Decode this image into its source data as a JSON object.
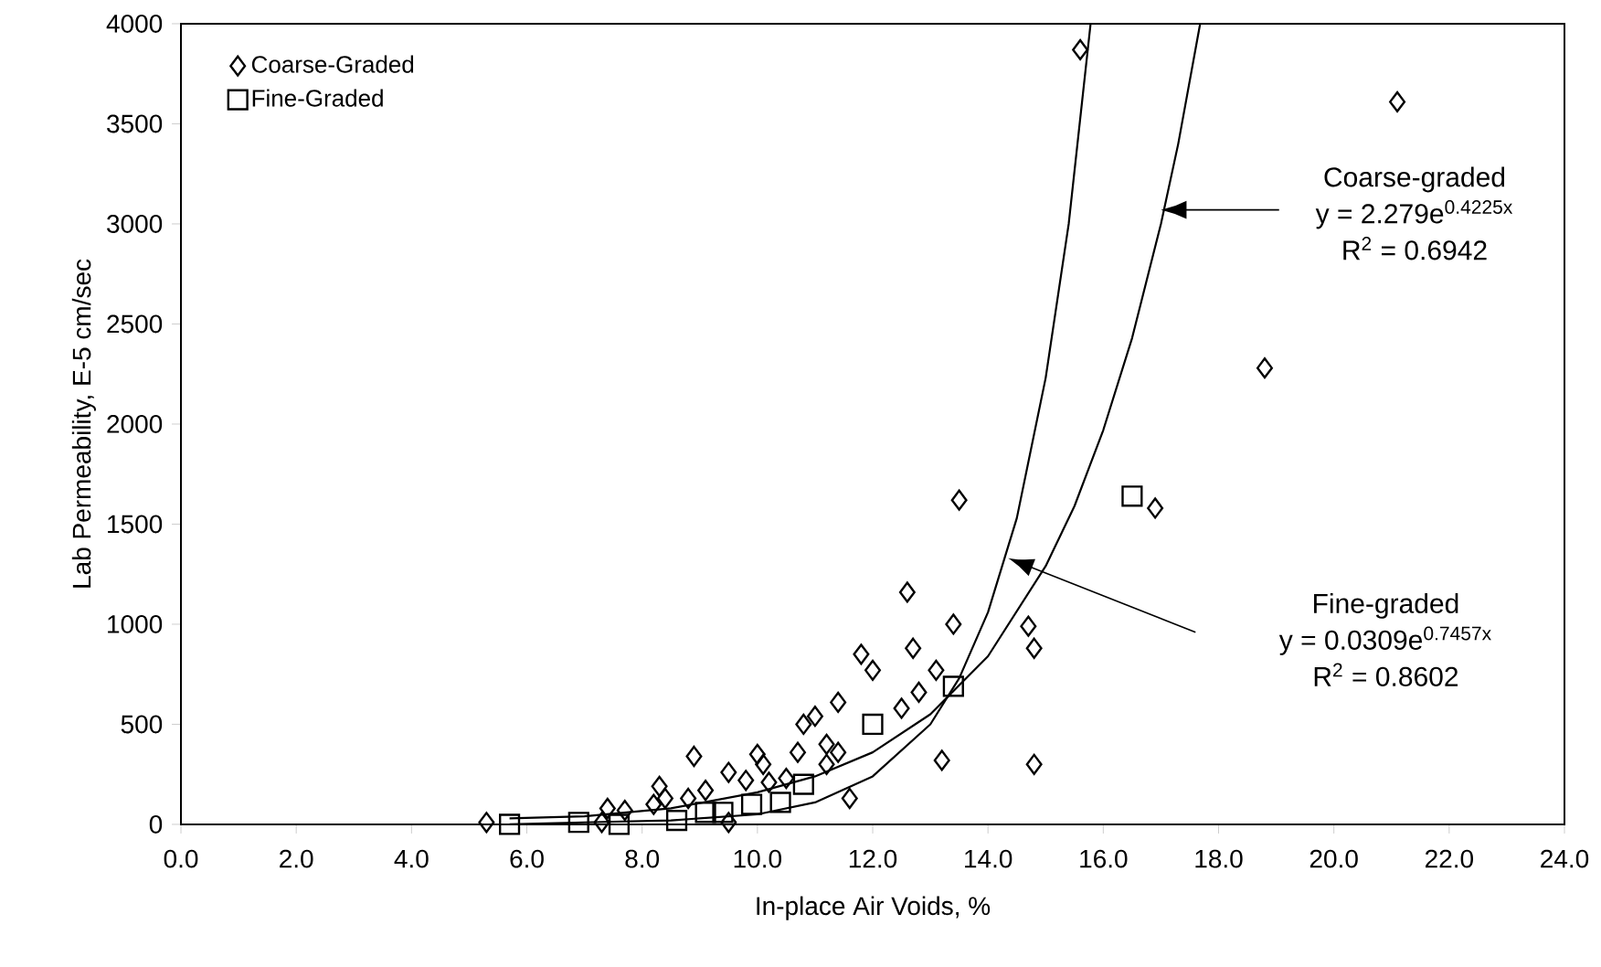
{
  "chart_data": {
    "type": "scatter",
    "xlabel": "In-place Air Voids, %",
    "ylabel": "Lab Permeability, E-5 cm/sec",
    "xlim": [
      0,
      24
    ],
    "ylim": [
      0,
      4000
    ],
    "xticks": [
      {
        "value": 0,
        "label": "0.0"
      },
      {
        "value": 2,
        "label": "2.0"
      },
      {
        "value": 4,
        "label": "4.0"
      },
      {
        "value": 6,
        "label": "6.0"
      },
      {
        "value": 8,
        "label": "8.0"
      },
      {
        "value": 10,
        "label": "10.0"
      },
      {
        "value": 12,
        "label": "12.0"
      },
      {
        "value": 14,
        "label": "14.0"
      },
      {
        "value": 16,
        "label": "16.0"
      },
      {
        "value": 18,
        "label": "18.0"
      },
      {
        "value": 20,
        "label": "20.0"
      },
      {
        "value": 22,
        "label": "22.0"
      },
      {
        "value": 24,
        "label": "24.0"
      }
    ],
    "yticks": [
      0,
      500,
      1000,
      1500,
      2000,
      2500,
      3000,
      3500,
      4000
    ],
    "grid": false,
    "legend": "top left",
    "series": [
      {
        "name": "Coarse-Graded",
        "marker": "diamond",
        "color": "#000000",
        "x": [
          5.3,
          7.3,
          7.4,
          7.7,
          8.2,
          8.3,
          8.4,
          8.8,
          8.9,
          9.1,
          9.5,
          9.5,
          9.8,
          10.0,
          10.1,
          10.2,
          10.5,
          10.7,
          10.8,
          11.0,
          11.2,
          11.2,
          11.4,
          11.4,
          11.6,
          11.8,
          12.0,
          12.5,
          12.6,
          12.7,
          12.8,
          13.1,
          13.2,
          13.4,
          13.5,
          14.7,
          14.8,
          14.8,
          15.6,
          16.9,
          18.8,
          21.1
        ],
        "values": [
          10,
          10,
          80,
          70,
          100,
          190,
          130,
          130,
          340,
          170,
          260,
          10,
          220,
          350,
          300,
          210,
          230,
          360,
          500,
          540,
          300,
          400,
          360,
          610,
          130,
          850,
          770,
          580,
          1160,
          880,
          660,
          770,
          320,
          1000,
          1620,
          990,
          880,
          300,
          3870,
          1580,
          2280,
          3610
        ]
      },
      {
        "name": "Fine-Graded",
        "marker": "square",
        "color": "#000000",
        "x": [
          5.7,
          6.9,
          7.6,
          8.6,
          9.1,
          9.4,
          9.9,
          10.4,
          10.8,
          12.0,
          13.4,
          16.5
        ],
        "values": [
          0,
          10,
          0,
          20,
          60,
          60,
          100,
          110,
          200,
          500,
          690,
          1640
        ]
      },
      {
        "type": "line",
        "marker": "none",
        "line_style": "solid",
        "color": "#000000",
        "x": [
          5.7,
          7,
          8.5,
          10,
          11,
          12,
          13,
          14,
          15,
          15.5,
          16,
          16.5,
          17,
          17.3,
          17.68
        ],
        "values": [
          30,
          40,
          80,
          160,
          240,
          360,
          550,
          840,
          1290,
          1590,
          1970,
          2430,
          3000,
          3400,
          4000
        ]
      },
      {
        "type": "line",
        "marker": "none",
        "line_style": "solid",
        "color": "#000000",
        "x": [
          5.7,
          7,
          8.5,
          10,
          11,
          12,
          13,
          13.5,
          14,
          14.5,
          15,
          15.4,
          15.78
        ],
        "values": [
          0,
          10,
          20,
          50,
          110,
          240,
          500,
          730,
          1060,
          1530,
          2230,
          3000,
          4000
        ]
      }
    ],
    "annotations": [
      "Coarse-graded",
      "y = 2.279e$^{0.4225x}$",
      "R$^{2}$ = 0.6942",
      "Fine-graded",
      "y = 0.0309e$^{0.7457x}$",
      "R$^{2}$ = 0.8602"
    ]
  }
}
